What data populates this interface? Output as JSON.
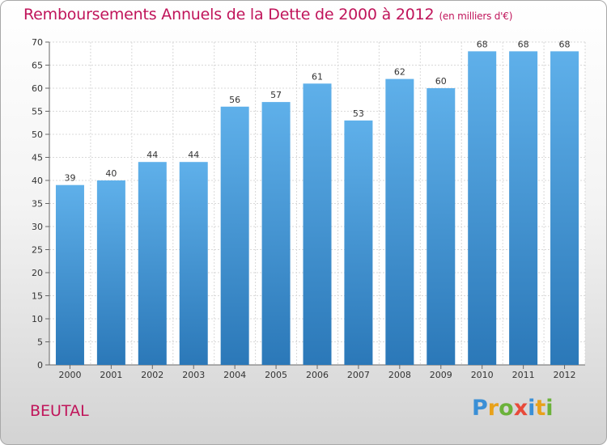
{
  "title": "Remboursements Annuels de la Dette de 2000 à 2012",
  "subtitle": "(en milliers d'€)",
  "place": "BEUTAL",
  "logo": {
    "letters": [
      {
        "ch": "P",
        "color": "#3a8fd6"
      },
      {
        "ch": "r",
        "color": "#e8a11a"
      },
      {
        "ch": "o",
        "color": "#6bb23a"
      },
      {
        "ch": "x",
        "color": "#e84a3a"
      },
      {
        "ch": "i",
        "color": "#3a8fd6"
      },
      {
        "ch": "t",
        "color": "#e8a11a"
      },
      {
        "ch": "i",
        "color": "#6bb23a"
      }
    ]
  },
  "colors": {
    "bar_top": "#5fb0ea",
    "bar_bottom": "#2b78b8",
    "title": "#c0145a"
  },
  "chart_data": {
    "type": "bar",
    "categories": [
      "2000",
      "2001",
      "2002",
      "2003",
      "2004",
      "2005",
      "2006",
      "2007",
      "2008",
      "2009",
      "2010",
      "2011",
      "2012"
    ],
    "values": [
      39,
      40,
      44,
      44,
      56,
      57,
      61,
      53,
      62,
      60,
      68,
      68,
      68
    ],
    "ylim": [
      0,
      70
    ],
    "yticks": [
      0,
      5,
      10,
      15,
      20,
      25,
      30,
      35,
      40,
      45,
      50,
      55,
      60,
      65,
      70
    ],
    "grid": true
  }
}
